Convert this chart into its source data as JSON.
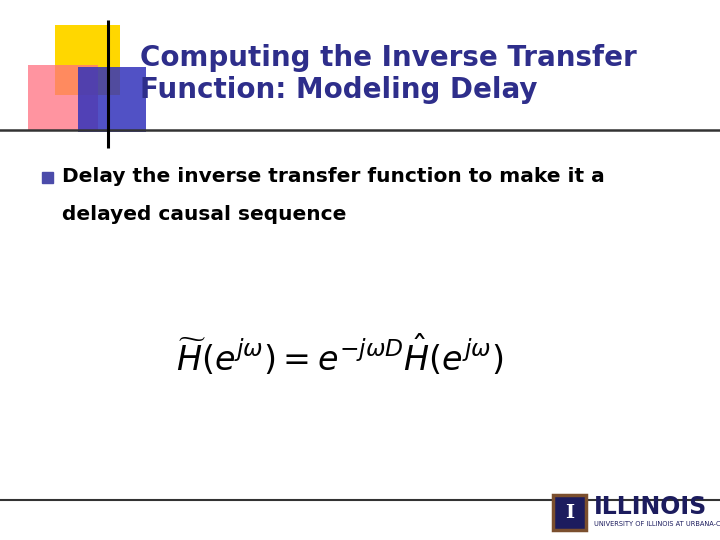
{
  "title_line1": "Computing the Inverse Transfer",
  "title_line2": "Function: Modeling Delay",
  "title_color": "#2E2E8B",
  "bullet_text1": "Delay the inverse transfer function to make it a",
  "bullet_text2": "delayed causal sequence",
  "formula": "$\\widetilde{H}(e^{j\\omega}) = e^{-j\\omega D} \\hat{H}(e^{j\\omega})$",
  "background_color": "#FFFFFF",
  "text_color": "#000000",
  "illinois_text": "ILLINOIS",
  "illinois_sub": "UNIVERSITY OF ILLINOIS AT URBANA-CHAMPAIGN",
  "illinois_color": "#1C1C5E",
  "bullet_sq_color": "#4B4BAA",
  "yellow_color": "#FFD700",
  "pink_color": "#FF7080",
  "blue_sq_color": "#3333BB",
  "line_color": "#333333",
  "logo_border_color": "#7B4F2E",
  "logo_bg_color": "#1C1C5E"
}
